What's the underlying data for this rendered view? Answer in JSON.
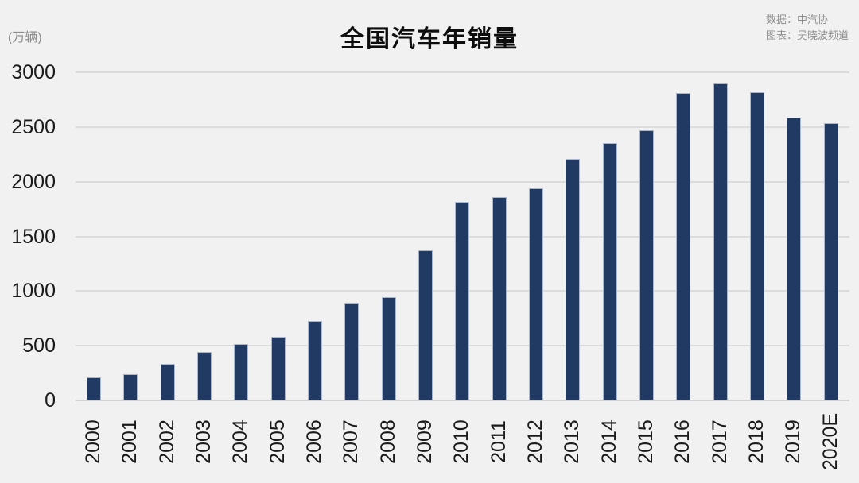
{
  "header": {
    "title": "全国汽车年销量",
    "unit_label": "(万辆)",
    "credit_line1": "数据：中汽协",
    "credit_line2": "图表：吴晓波频道"
  },
  "chart_data": {
    "type": "bar",
    "title": "全国汽车年销量",
    "unit": "万辆",
    "categories": [
      "2000",
      "2001",
      "2002",
      "2003",
      "2004",
      "2005",
      "2006",
      "2007",
      "2008",
      "2009",
      "2010",
      "2011",
      "2012",
      "2013",
      "2014",
      "2015",
      "2016",
      "2017",
      "2018",
      "2019",
      "2020E"
    ],
    "values": [
      207,
      236,
      325,
      439,
      507,
      576,
      722,
      879,
      938,
      1364,
      1806,
      1851,
      1931,
      2198,
      2349,
      2460,
      2803,
      2888,
      2808,
      2577,
      2530
    ],
    "xlabel": "",
    "ylabel": "(万辆)",
    "ylim": [
      0,
      3000
    ],
    "yticks": [
      0,
      500,
      1000,
      1500,
      2000,
      2500,
      3000
    ],
    "grid": true,
    "legend": "none",
    "x_tick_rotation_deg": -90,
    "colors": {
      "bar_fill": "#213a63",
      "bar_border": "#a9b7cf",
      "background": "#f1f1f1",
      "gridline": "#dcdcdc",
      "tick_label": "#1a1a1a",
      "title": "#0d0d0d",
      "credits": "#8f8f8f"
    }
  }
}
